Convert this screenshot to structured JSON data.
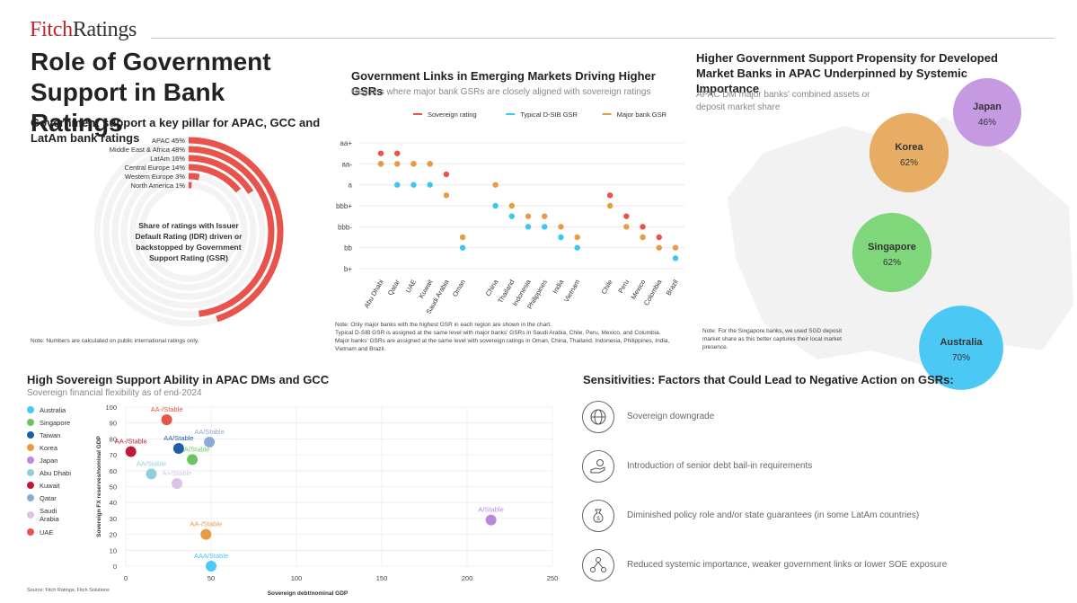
{
  "brand": {
    "logo_part1": "Fitch",
    "logo_part2": "Ratings",
    "accent": "#e8534b"
  },
  "main_title": "Role of Government Support in Bank Ratings",
  "panel1": {
    "heading": "Government support a key pillar for APAC, GCC and LatAm bank ratings",
    "center_text": "Share of ratings with Issuer Default Rating (IDR) driven or backstopped by Government Support Rating (GSR)",
    "note": "Note: Numbers are calculated on public international ratings only.",
    "color": "#e8534b",
    "track_color": "#f3f3f3"
  },
  "panel2": {
    "heading": "Government Links in Emerging Markets Driving Higher GSRs",
    "subtitle": "Regions where major bank GSRs are closely aligned with sovereign ratings",
    "note_lines": [
      "Note: Only major banks with the highest GSR in each region are shown in the chart.",
      "Typical D-SIB GSR is assigned at the same level with major banks' GSRs in Saudi Arabia, Chile, Peru, Mexico, and Columbia.",
      "Major banks' GSRs are assigned at the same level with sovereign ratings in Oman, China, Thailand, Indonesia, Philippines, India,",
      "Vietnam and Brazil."
    ]
  },
  "panel3": {
    "heading": "Higher Government Support Propensity for Developed Market Banks in APAC Underpinned by Systemic Importance",
    "subtitle": "APAC DM major banks' combined assets or deposit market share",
    "note": "Note: For the Singapore banks, we used SGD deposit market share as this better captures their local market presence."
  },
  "panel4": {
    "heading": "High Sovereign Support Ability in APAC DMs and GCC",
    "subtitle": "Sovereign financial flexibility as of end-2024",
    "source": "Source: Fitch Ratings, Fitch Solutions"
  },
  "panel5": {
    "heading": "Sensitivities: Factors that Could Lead to Negative Action on GSRs:",
    "items": [
      {
        "icon": "globe-dollar-icon",
        "text": "Sovereign downgrade"
      },
      {
        "icon": "hand-coins-icon",
        "text": "Introduction of senior debt bail-in requirements"
      },
      {
        "icon": "money-bag-icon",
        "text": "Diminished policy role and/or state guarantees (in some LatAm countries)"
      },
      {
        "icon": "network-icon",
        "text": "Reduced systemic importance, weaker government links or lower SOE exposure"
      }
    ]
  },
  "chart_data": [
    {
      "type": "radial-bar",
      "categories": [
        "APAC",
        "Middle East & Africa",
        "LatAm",
        "Central Europe",
        "Western Europe",
        "North America"
      ],
      "labels": [
        "APAC 45%",
        "Middle East & Africa 48%",
        "LatAm 16%",
        "Central Europe 14%",
        "Western Europe 3%",
        "North America 1%"
      ],
      "values": [
        45,
        48,
        16,
        14,
        3,
        1
      ],
      "unit": "%"
    },
    {
      "type": "scatter",
      "categories": [
        "Abu Dhabi",
        "Qatar",
        "UAE",
        "Kuwait",
        "Saudi Arabia",
        "Oman",
        "China",
        "Thailand",
        "Indonesia",
        "Philippines",
        "India",
        "Vietnam",
        "Chile",
        "Peru",
        "Mexico",
        "Colombia",
        "Brazil"
      ],
      "y_levels": [
        "b+",
        "bb",
        "bbb-",
        "bbb+",
        "a",
        "aa-",
        "aa+"
      ],
      "series": [
        {
          "name": "Sovereign rating",
          "color": "#e8534b",
          "values": [
            "aa",
            "aa",
            "aa-",
            "aa-",
            "a+",
            null,
            null,
            null,
            null,
            null,
            null,
            null,
            "a-",
            "bbb",
            "bbb-",
            "bb+",
            null
          ]
        },
        {
          "name": "Typical D-SIB GSR",
          "color": "#3cc6f0",
          "values": [
            "aa-",
            "a",
            "a",
            "a",
            null,
            "bb",
            "bbb+",
            "bbb",
            "bbb-",
            "bbb-",
            "bb+",
            "bb",
            null,
            null,
            null,
            null,
            "bb-"
          ]
        },
        {
          "name": "Major bank GSR",
          "color": "#e99a45",
          "values": [
            "aa-",
            "aa-",
            "aa-",
            "aa-",
            "a-",
            "bb+",
            "a",
            "bbb+",
            "bbb",
            "bbb",
            "bbb-",
            "bb+",
            "bbb+",
            "bbb-",
            "bb+",
            "bb",
            "bb"
          ]
        }
      ]
    },
    {
      "type": "bubble",
      "items": [
        {
          "name": "Japan",
          "value": 46,
          "label": "46%",
          "color": "#c69ae3"
        },
        {
          "name": "Korea",
          "value": 62,
          "label": "62%",
          "color": "#e8ad64"
        },
        {
          "name": "Singapore",
          "value": 62,
          "label": "62%",
          "color": "#7fd67b"
        },
        {
          "name": "Australia",
          "value": 70,
          "label": "70%",
          "color": "#4cc8f4"
        }
      ]
    },
    {
      "type": "scatter",
      "xlabel": "Sovereign debt/nominal GDP",
      "ylabel": "Sovereign FX reserves/nominal GDP",
      "xlim": [
        0,
        250
      ],
      "ylim": [
        0,
        100
      ],
      "xticks": [
        0,
        50,
        100,
        150,
        200,
        250
      ],
      "yticks": [
        0,
        10,
        20,
        30,
        40,
        50,
        60,
        70,
        80,
        90,
        100
      ],
      "points": [
        {
          "name": "Australia",
          "x": 50,
          "y": 0,
          "label": "AAA/Stable",
          "color": "#4cc8f4"
        },
        {
          "name": "Singapore",
          "x": 39,
          "y": 67,
          "label": "AAA/Stable",
          "color": "#6bc55e"
        },
        {
          "name": "Taiwan",
          "x": 31,
          "y": 74,
          "label": "AA/Stable",
          "color": "#1f5fa8"
        },
        {
          "name": "Korea",
          "x": 47,
          "y": 20,
          "label": "AA-/Stable",
          "color": "#e99a45"
        },
        {
          "name": "Japan",
          "x": 214,
          "y": 29,
          "label": "A/Stable",
          "color": "#b889dd"
        },
        {
          "name": "Abu Dhabi",
          "x": 15,
          "y": 58,
          "label": "AA/Stable",
          "color": "#8fd0d8"
        },
        {
          "name": "Kuwait",
          "x": 3,
          "y": 72,
          "label": "AA-/Stable",
          "color": "#c0183a"
        },
        {
          "name": "Qatar",
          "x": 49,
          "y": 78,
          "label": "AA/Stable",
          "color": "#8aaad7"
        },
        {
          "name": "Saudi Arabia",
          "x": 30,
          "y": 52,
          "label": "A+/Stable",
          "color": "#dcc2e6"
        },
        {
          "name": "UAE",
          "x": 24,
          "y": 92,
          "label": "AA-/Stable",
          "color": "#e8534b"
        }
      ],
      "legend": [
        "Australia",
        "Singapore",
        "Taiwan",
        "Korea",
        "Japan",
        "Abu Dhabi",
        "Kuwait",
        "Qatar",
        "Saudi Arabia",
        "UAE"
      ]
    }
  ]
}
